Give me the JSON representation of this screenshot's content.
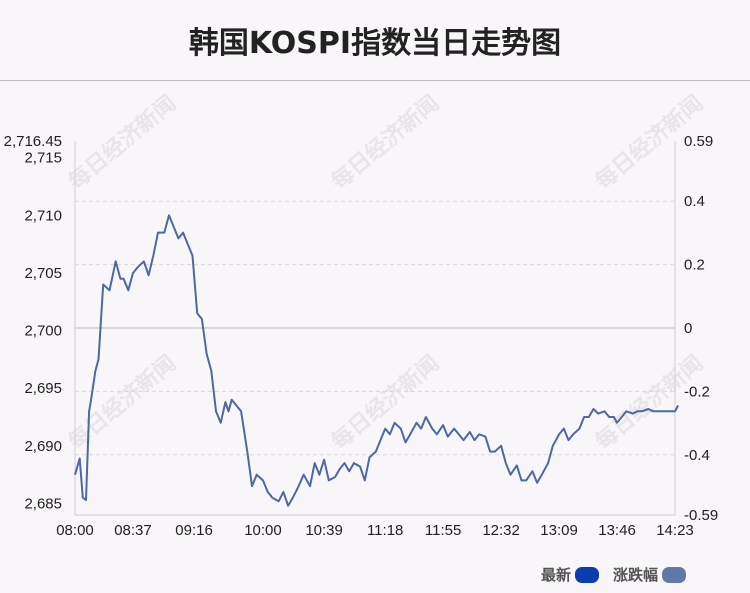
{
  "title": "韩国KOSPI指数当日走势图",
  "watermark": "每日经济新闻",
  "legend": [
    {
      "label": "最新",
      "color": "#0a3db0"
    },
    {
      "label": "涨跌幅",
      "color": "#5f79a8"
    }
  ],
  "colors": {
    "line": "#4d68a2",
    "grid": "#d9d9d9",
    "baseline": "#c9c9c9"
  },
  "chart_data": {
    "type": "line",
    "title": "韩国KOSPI指数当日走势图",
    "x_ticks": [
      "08:00",
      "08:37",
      "09:16",
      "10:00",
      "10:39",
      "11:18",
      "11:55",
      "12:32",
      "13:09",
      "13:46",
      "14:23"
    ],
    "y_left": {
      "range": [
        2684,
        2716.45
      ],
      "ticks": [
        "2,716.45",
        "2,715",
        "2,710",
        "2,705",
        "2,700",
        "2,695",
        "2,690",
        "2,685"
      ]
    },
    "y_right": {
      "range": [
        -0.59,
        0.59
      ],
      "ticks": [
        "0.59",
        "0.4",
        "0.2",
        "0",
        "-0.2",
        "-0.4",
        "-0.59"
      ]
    },
    "prev_close": 2700,
    "grid": true,
    "legend_position": "bottom-right",
    "series": [
      {
        "name": "最新",
        "x": [
          "08:00",
          "08:03",
          "08:05",
          "08:07",
          "08:09",
          "08:10",
          "08:13",
          "08:15",
          "08:18",
          "08:22",
          "08:26",
          "08:29",
          "08:31",
          "08:34",
          "08:37",
          "08:40",
          "08:44",
          "08:47",
          "08:50",
          "08:53",
          "08:57",
          "09:00",
          "09:03",
          "09:06",
          "09:09",
          "09:12",
          "09:15",
          "09:18",
          "09:21",
          "09:24",
          "09:27",
          "09:30",
          "09:33",
          "09:36",
          "09:38",
          "09:40",
          "09:43",
          "09:46",
          "09:50",
          "09:53",
          "09:56",
          "10:00",
          "10:03",
          "10:06",
          "10:10",
          "10:13",
          "10:16",
          "10:19",
          "10:22",
          "10:26",
          "10:30",
          "10:33",
          "10:36",
          "10:39",
          "10:42",
          "10:46",
          "10:49",
          "10:52",
          "10:55",
          "10:58",
          "11:02",
          "11:05",
          "11:08",
          "11:12",
          "11:15",
          "11:18",
          "11:21",
          "11:24",
          "11:28",
          "11:31",
          "11:34",
          "11:38",
          "11:41",
          "11:44",
          "11:48",
          "11:51",
          "11:55",
          "11:58",
          "12:02",
          "12:05",
          "12:08",
          "12:12",
          "12:15",
          "12:18",
          "12:22",
          "12:25",
          "12:28",
          "12:32",
          "12:35",
          "12:38",
          "12:42",
          "12:45",
          "12:48",
          "12:52",
          "12:55",
          "12:58",
          "13:02",
          "13:05",
          "13:09",
          "13:12",
          "13:15",
          "13:18",
          "13:22",
          "13:25",
          "13:28",
          "13:31",
          "13:34",
          "13:38",
          "13:41",
          "13:44",
          "13:46",
          "13:49",
          "13:52",
          "13:56",
          "13:59",
          "14:02",
          "14:06",
          "14:09",
          "14:12",
          "14:15",
          "14:18",
          "14:21",
          "14:23",
          "14:25"
        ],
        "values": [
          2687.5,
          2688.9,
          2685.5,
          2685.3,
          2693,
          2693.8,
          2696.5,
          2697.5,
          2704,
          2703.5,
          2706,
          2704.5,
          2704.5,
          2703.5,
          2705,
          2705.5,
          2706,
          2704.8,
          2706.5,
          2708.5,
          2708.5,
          2710,
          2709,
          2708,
          2708.5,
          2707.5,
          2706.5,
          2701.5,
          2701,
          2698,
          2696.5,
          2693,
          2692,
          2693.8,
          2693,
          2694,
          2693.5,
          2693,
          2689.5,
          2686.5,
          2687.5,
          2687,
          2686,
          2685.5,
          2685.2,
          2686,
          2684.8,
          2685.5,
          2686.3,
          2687.5,
          2686.5,
          2688.5,
          2687.5,
          2688.8,
          2687,
          2687.3,
          2688,
          2688.5,
          2687.8,
          2688.5,
          2688.2,
          2687,
          2689,
          2689.5,
          2690.5,
          2691.5,
          2691,
          2692,
          2691.5,
          2690.3,
          2691,
          2692,
          2691.5,
          2692.5,
          2691.5,
          2691,
          2691.8,
          2690.8,
          2691.5,
          2691,
          2690.5,
          2691.2,
          2690.5,
          2691,
          2690.8,
          2689.5,
          2689.5,
          2690,
          2688.5,
          2687.5,
          2688.3,
          2687,
          2687,
          2687.8,
          2686.8,
          2687.5,
          2688.5,
          2690,
          2691,
          2691.5,
          2690.5,
          2691,
          2691.5,
          2692.5,
          2692.5,
          2693.2,
          2692.8,
          2693,
          2692.5,
          2692.5,
          2692,
          2692.5,
          2693,
          2692.8,
          2693,
          2693,
          2693.2,
          2693,
          2693,
          2693,
          2693,
          2693,
          2693,
          2693.5
        ]
      }
    ]
  }
}
